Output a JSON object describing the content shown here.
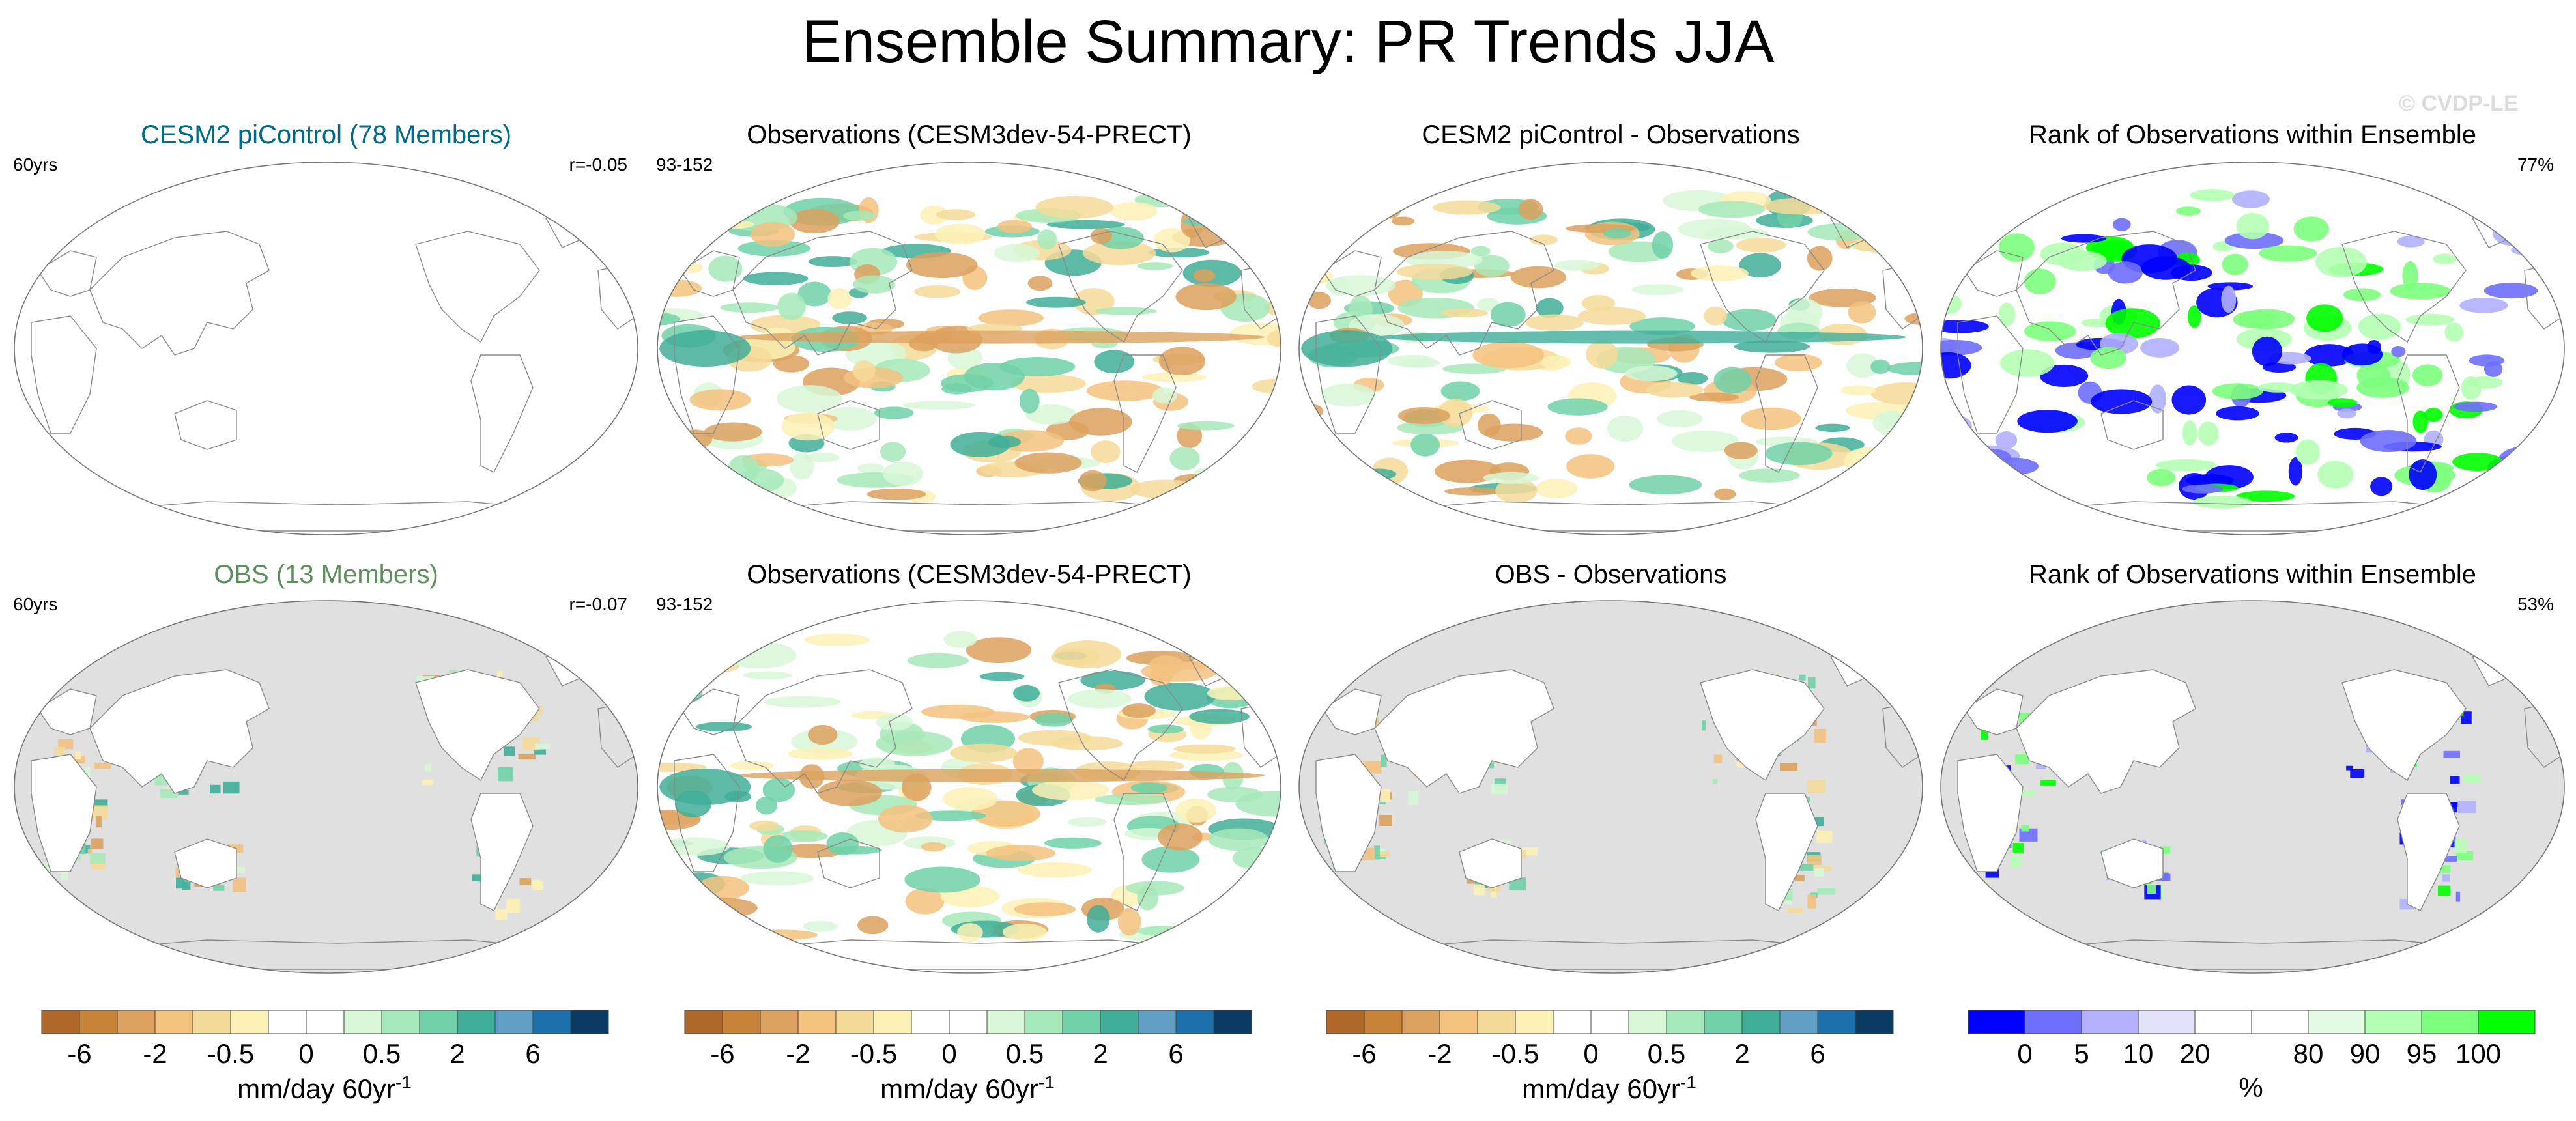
{
  "title": "Ensemble Summary: PR Trends JJA",
  "watermark": "© CVDP-LE",
  "rows": [
    {
      "panels": [
        {
          "title": "CESM2 piControl (78 Members)",
          "title_color": "#006b86",
          "left": "60yrs",
          "right": "r=-0.05",
          "fill": "none",
          "bg": "#ffffff",
          "land": "none"
        },
        {
          "title": "Observations (CESM3dev-54-PRECT)",
          "title_color": "#000000",
          "left": "93-152",
          "right": "",
          "fill": "trend",
          "bg": "#ffffff",
          "land": "none"
        },
        {
          "title": "CESM2 piControl - Observations",
          "title_color": "#000000",
          "left": "",
          "right": "",
          "fill": "trend-diff",
          "bg": "#ffffff",
          "land": "none"
        },
        {
          "title": "Rank of Observations within Ensemble",
          "title_color": "#000000",
          "left": "",
          "right": "77%",
          "fill": "rank",
          "bg": "#ffffff",
          "land": "none"
        }
      ]
    },
    {
      "panels": [
        {
          "title": "OBS (13 Members)",
          "title_color": "#5f8f5f",
          "left": "60yrs",
          "right": "r=-0.07",
          "fill": "land-trend",
          "bg": "#e0e0e0",
          "land": "white"
        },
        {
          "title": "Observations (CESM3dev-54-PRECT)",
          "title_color": "#000000",
          "left": "93-152",
          "right": "",
          "fill": "trend",
          "bg": "#ffffff",
          "land": "none"
        },
        {
          "title": "OBS - Observations",
          "title_color": "#000000",
          "left": "",
          "right": "",
          "fill": "land-trend",
          "bg": "#e0e0e0",
          "land": "white"
        },
        {
          "title": "Rank of Observations within Ensemble",
          "title_color": "#000000",
          "left": "",
          "right": "53%",
          "fill": "land-rank",
          "bg": "#e0e0e0",
          "land": "white"
        }
      ]
    }
  ],
  "colorbars": [
    {
      "colors": [
        "#b0672a",
        "#c98339",
        "#dca15e",
        "#f3c27f",
        "#f4da99",
        "#fbf1b5",
        "#ffffff",
        "#ffffff",
        "#d7f7d6",
        "#a6e9b9",
        "#70d1a8",
        "#3fae98",
        "#5f9fc4",
        "#1c70ad",
        "#093b62"
      ],
      "ticks": [
        "-6",
        "-2",
        "-0.5",
        "0",
        "0.5",
        "2",
        "6"
      ],
      "tick_boundaries": [
        1,
        3,
        5,
        7,
        9,
        11,
        13
      ],
      "label": "mm/day 60yr",
      "label_sup": "-1"
    },
    {
      "colors": [
        "#b0672a",
        "#c98339",
        "#dca15e",
        "#f3c27f",
        "#f4da99",
        "#fbf1b5",
        "#ffffff",
        "#ffffff",
        "#d7f7d6",
        "#a6e9b9",
        "#70d1a8",
        "#3fae98",
        "#5f9fc4",
        "#1c70ad",
        "#093b62"
      ],
      "ticks": [
        "-6",
        "-2",
        "-0.5",
        "0",
        "0.5",
        "2",
        "6"
      ],
      "tick_boundaries": [
        1,
        3,
        5,
        7,
        9,
        11,
        13
      ],
      "label": "mm/day 60yr",
      "label_sup": "-1"
    },
    {
      "colors": [
        "#b0672a",
        "#c98339",
        "#dca15e",
        "#f3c27f",
        "#f4da99",
        "#fbf1b5",
        "#ffffff",
        "#ffffff",
        "#d7f7d6",
        "#a6e9b9",
        "#70d1a8",
        "#3fae98",
        "#5f9fc4",
        "#1c70ad",
        "#093b62"
      ],
      "ticks": [
        "-6",
        "-2",
        "-0.5",
        "0",
        "0.5",
        "2",
        "6"
      ],
      "tick_boundaries": [
        1,
        3,
        5,
        7,
        9,
        11,
        13
      ],
      "label": "mm/day 60yr",
      "label_sup": "-1"
    },
    {
      "colors": [
        "#0000ff",
        "#6e6eff",
        "#b0b0ff",
        "#e2e2fb",
        "#ffffff",
        "#ffffff",
        "#e2fbe2",
        "#b4ffb4",
        "#7cff7c",
        "#00ff00"
      ],
      "ticks": [
        "0",
        "5",
        "10",
        "20",
        "80",
        "90",
        "95",
        "100"
      ],
      "tick_boundaries": [
        1,
        2,
        3,
        4,
        6,
        7,
        8,
        9
      ],
      "label": "%",
      "label_sup": ""
    }
  ]
}
